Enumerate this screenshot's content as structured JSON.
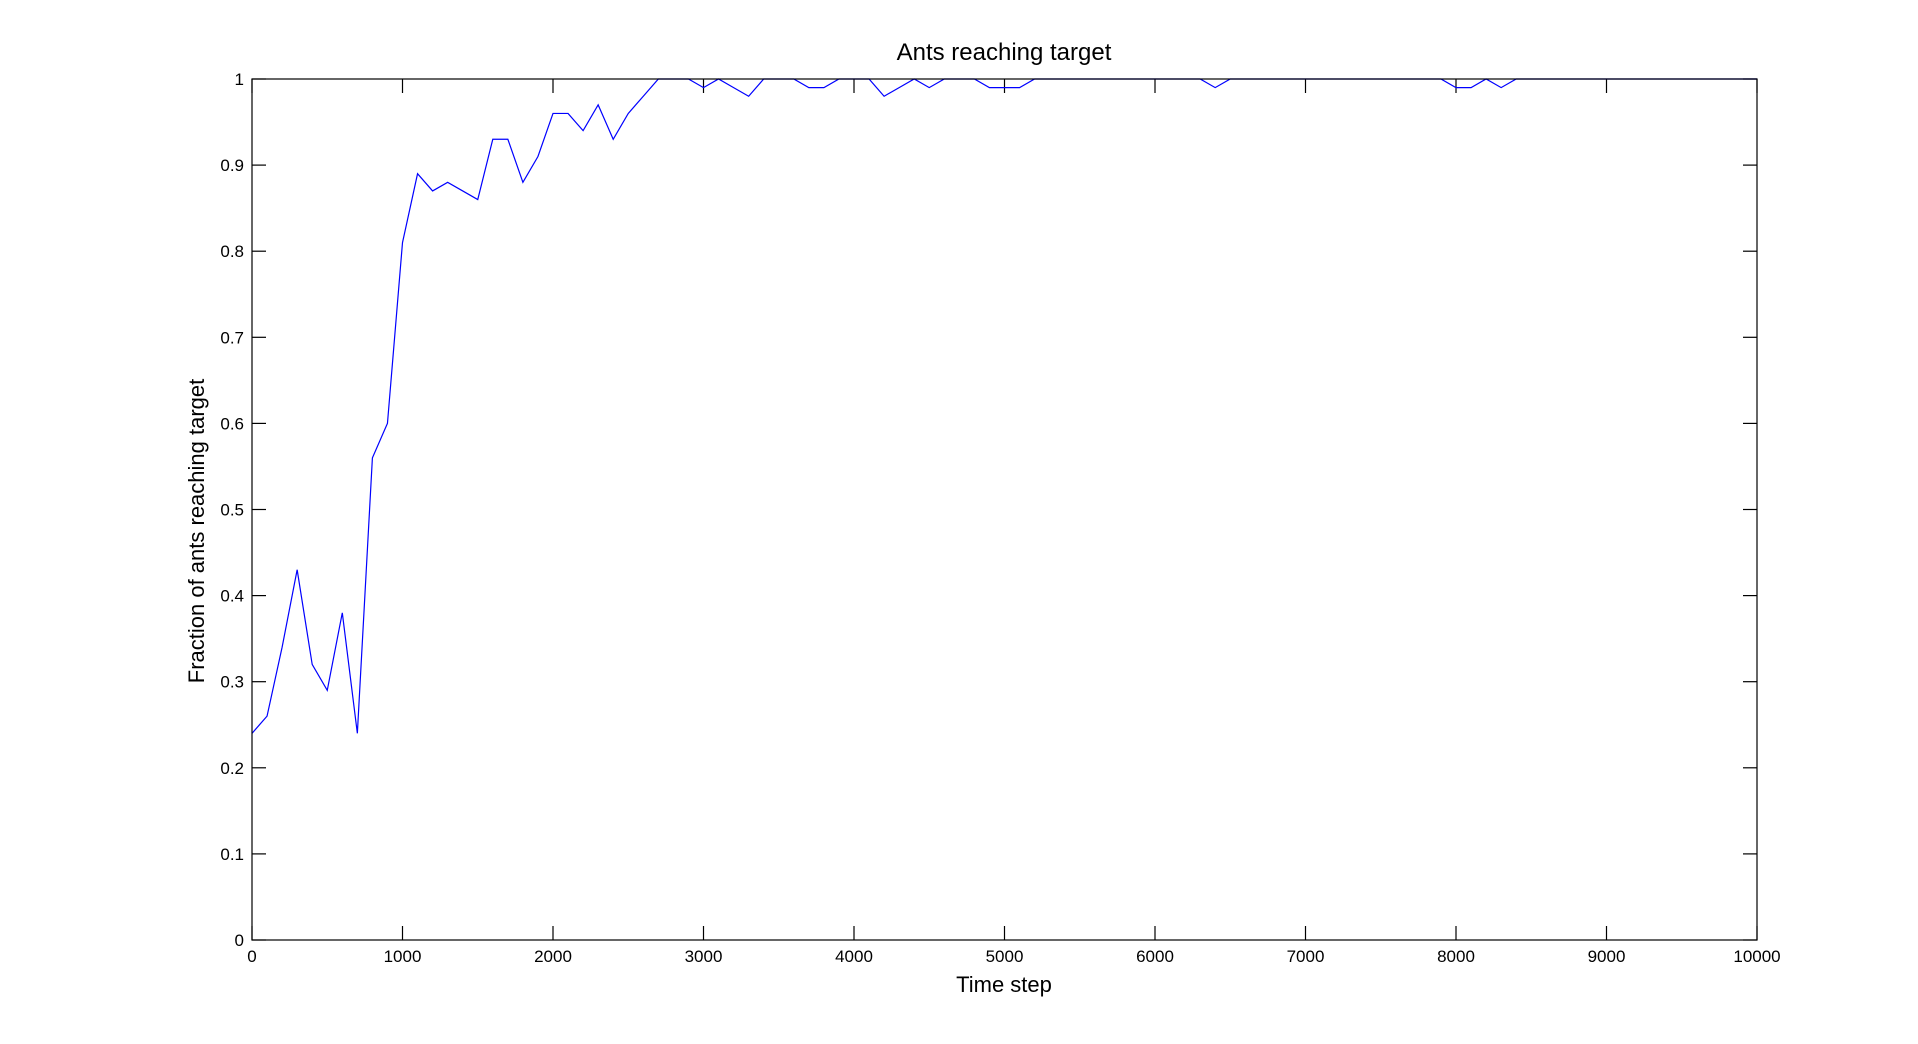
{
  "chart_data": {
    "type": "line",
    "title": "Ants reaching target",
    "xlabel": "Time step",
    "ylabel": "Fraction of ants reaching target",
    "xlim": [
      0,
      10000
    ],
    "ylim": [
      0,
      1
    ],
    "grid": false,
    "legend": "none",
    "xticks": [
      0,
      1000,
      2000,
      3000,
      4000,
      5000,
      6000,
      7000,
      8000,
      9000,
      10000
    ],
    "yticks": [
      0,
      0.1,
      0.2,
      0.3,
      0.4,
      0.5,
      0.6,
      0.7,
      0.8,
      0.9,
      1
    ],
    "xtick_labels": [
      "0",
      "1000",
      "2000",
      "3000",
      "4000",
      "5000",
      "6000",
      "7000",
      "8000",
      "9000",
      "10000"
    ],
    "ytick_labels": [
      "0",
      "0.1",
      "0.2",
      "0.3",
      "0.4",
      "0.5",
      "0.6",
      "0.7",
      "0.8",
      "0.9",
      "1"
    ],
    "series": [
      {
        "color": "#0000ff",
        "x": [
          0,
          100,
          200,
          300,
          400,
          500,
          600,
          700,
          800,
          900,
          1000,
          1100,
          1200,
          1300,
          1400,
          1500,
          1600,
          1700,
          1800,
          1900,
          2000,
          2100,
          2200,
          2300,
          2400,
          2500,
          2600,
          2700,
          2800,
          2900,
          3000,
          3100,
          3200,
          3300,
          3400,
          3500,
          3600,
          3700,
          3800,
          3900,
          4000,
          4100,
          4200,
          4300,
          4400,
          4500,
          4600,
          4700,
          4800,
          4900,
          5000,
          5100,
          5200,
          5300,
          5400,
          5500,
          5600,
          5700,
          5800,
          5900,
          6000,
          6100,
          6200,
          6300,
          6400,
          6500,
          6600,
          6700,
          6800,
          6900,
          7000,
          7100,
          7200,
          7300,
          7400,
          7500,
          7600,
          7700,
          7800,
          7900,
          8000,
          8100,
          8200,
          8300,
          8400,
          8500,
          8600,
          8700,
          8800,
          8900,
          9000,
          9100,
          9200,
          9300,
          9400,
          9500,
          9600,
          9700,
          9800,
          9900,
          10000
        ],
        "y": [
          0.24,
          0.26,
          0.34,
          0.43,
          0.32,
          0.29,
          0.38,
          0.24,
          0.56,
          0.6,
          0.81,
          0.89,
          0.87,
          0.88,
          0.87,
          0.86,
          0.93,
          0.93,
          0.88,
          0.91,
          0.96,
          0.96,
          0.94,
          0.97,
          0.93,
          0.96,
          0.98,
          1.0,
          1.0,
          1.0,
          0.99,
          1.0,
          0.99,
          0.98,
          1.0,
          1.0,
          1.0,
          0.99,
          0.99,
          1.0,
          1.0,
          1.0,
          0.98,
          0.99,
          1.0,
          0.99,
          1.0,
          1.0,
          1.0,
          0.99,
          0.99,
          0.99,
          1.0,
          1.0,
          1.0,
          1.0,
          1.0,
          1.0,
          1.0,
          1.0,
          1.0,
          1.0,
          1.0,
          1.0,
          0.99,
          1.0,
          1.0,
          1.0,
          1.0,
          1.0,
          1.0,
          1.0,
          1.0,
          1.0,
          1.0,
          1.0,
          1.0,
          1.0,
          1.0,
          1.0,
          0.99,
          0.99,
          1.0,
          0.99,
          1.0,
          1.0,
          1.0,
          1.0,
          1.0,
          1.0,
          1.0,
          1.0,
          1.0,
          1.0,
          1.0,
          1.0,
          1.0,
          1.0,
          1.0,
          1.0,
          1.0
        ]
      }
    ]
  }
}
